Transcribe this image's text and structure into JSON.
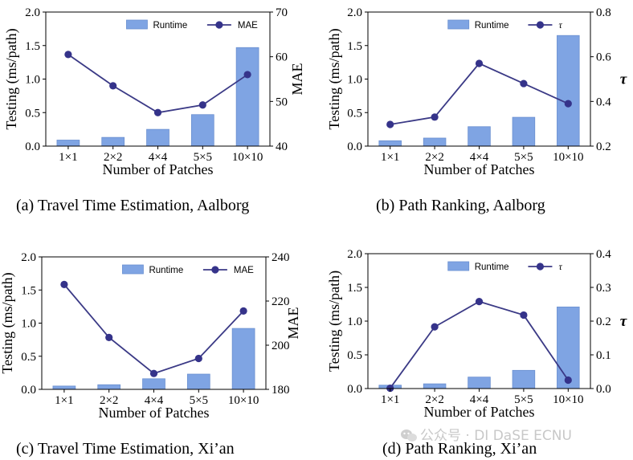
{
  "colors": {
    "bar_fill": "#7fa4e3",
    "bar_stroke": "#6a8fd0",
    "line": "#3b3a86",
    "marker": "#35338a",
    "axis": "#000000"
  },
  "watermark": {
    "icon": "wechat-icon",
    "text": "公众号 · DI DaSE ECNU"
  },
  "chart_data": [
    {
      "type": "bar+line",
      "caption": "(a)  Travel Time Estimation, Aalborg",
      "categories": [
        "1×1",
        "2×2",
        "4×4",
        "5×5",
        "10×10"
      ],
      "xlabel": "Number of Patches",
      "ylabel_left": "Testing (ms/path)",
      "ylim_left": [
        0,
        2.0
      ],
      "yticks_left": [
        "0.0",
        "0.5",
        "1.0",
        "1.5",
        "2.0"
      ],
      "ylabel_right": "MAE",
      "ylabel_right_style": "text",
      "ylim_right": [
        40,
        70
      ],
      "yticks_right": [
        "40",
        "50",
        "60",
        "70"
      ],
      "bar_series": {
        "name": "Runtime",
        "values": [
          0.09,
          0.13,
          0.25,
          0.47,
          1.47
        ]
      },
      "line_series": {
        "name": "MAE",
        "values": [
          60.5,
          53.5,
          47.5,
          49.2,
          56.0
        ]
      },
      "legend": "top"
    },
    {
      "type": "bar+line",
      "caption": "(b)  Path Ranking, Aalborg",
      "categories": [
        "1×1",
        "2×2",
        "4×4",
        "5×5",
        "10×10"
      ],
      "xlabel": "Number of Patches",
      "ylabel_left": "Testing (ms/path)",
      "ylim_left": [
        0,
        2.0
      ],
      "yticks_left": [
        "0.0",
        "0.5",
        "1.0",
        "1.5",
        "2.0"
      ],
      "ylabel_right": "τ",
      "ylabel_right_style": "symbol",
      "ylim_right": [
        0.2,
        0.8
      ],
      "yticks_right": [
        "0.2",
        "0.4",
        "0.6",
        "0.8"
      ],
      "bar_series": {
        "name": "Runtime",
        "values": [
          0.08,
          0.12,
          0.29,
          0.43,
          1.65
        ]
      },
      "line_series": {
        "name": "τ",
        "values": [
          0.297,
          0.33,
          0.57,
          0.48,
          0.39
        ]
      },
      "legend": "top"
    },
    {
      "type": "bar+line",
      "caption": "(c)  Travel Time Estimation, Xi’an",
      "categories": [
        "1×1",
        "2×2",
        "4×4",
        "5×5",
        "10×10"
      ],
      "xlabel": "Number of Patches",
      "ylabel_left": "Testing (ms/path)",
      "ylim_left": [
        0,
        2.0
      ],
      "yticks_left": [
        "0.0",
        "0.5",
        "1.0",
        "1.5",
        "2.0"
      ],
      "ylabel_right": "MAE",
      "ylabel_right_style": "text",
      "ylim_right": [
        180,
        240
      ],
      "yticks_right": [
        "180",
        "200",
        "220",
        "240"
      ],
      "bar_series": {
        "name": "Runtime",
        "values": [
          0.05,
          0.07,
          0.16,
          0.23,
          0.92
        ]
      },
      "line_series": {
        "name": "MAE",
        "values": [
          227.5,
          203.5,
          187.2,
          194.0,
          215.5
        ]
      },
      "legend": "top"
    },
    {
      "type": "bar+line",
      "caption": "(d)  Path Ranking, Xi’an",
      "categories": [
        "1×1",
        "2×2",
        "4×4",
        "5×5",
        "10×10"
      ],
      "xlabel": "Number of Patches",
      "ylabel_left": "Testing (ms/path)",
      "ylim_left": [
        0,
        2.0
      ],
      "yticks_left": [
        "0.0",
        "0.5",
        "1.0",
        "1.5",
        "2.0"
      ],
      "ylabel_right": "τ",
      "ylabel_right_style": "symbol",
      "ylim_right": [
        0.0,
        0.4
      ],
      "yticks_right": [
        "0.0",
        "0.1",
        "0.2",
        "0.3",
        "0.4"
      ],
      "bar_series": {
        "name": "Runtime",
        "values": [
          0.05,
          0.07,
          0.17,
          0.27,
          1.21
        ]
      },
      "line_series": {
        "name": "τ",
        "values": [
          0.001,
          0.183,
          0.258,
          0.218,
          0.025
        ]
      },
      "legend": "top"
    }
  ]
}
